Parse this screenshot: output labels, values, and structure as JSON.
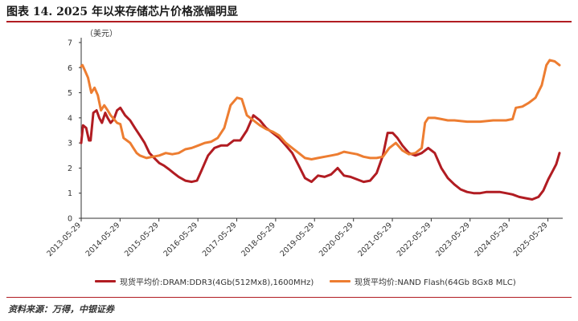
{
  "header": {
    "title": "图表 14. 2025 年以来存储芯片价格涨幅明显"
  },
  "footer": {
    "source": "资料来源：万得，中银证券"
  },
  "colors": {
    "accent_rule": "#b11c22",
    "dram_series": "#b11c22",
    "nand_series": "#ed7d31",
    "axis": "#333333"
  },
  "chart_data": {
    "type": "line",
    "title": "",
    "xlabel": "",
    "ylabel": "（美元）",
    "ylim": [
      0,
      7
    ],
    "yticks": [
      0,
      1,
      2,
      3,
      4,
      5,
      6,
      7
    ],
    "xlim": [
      "2013-05-29",
      "2025-10-15"
    ],
    "xticks": [
      "2013-05-29",
      "2014-05-29",
      "2015-05-29",
      "2016-05-29",
      "2017-05-29",
      "2018-05-29",
      "2019-05-29",
      "2020-05-29",
      "2021-05-29",
      "2022-05-29",
      "2023-05-29",
      "2024-05-29",
      "2025-05-29"
    ],
    "grid": false,
    "legend_position": "bottom",
    "series": [
      {
        "name": "现货平均价:DRAM:DDR3(4Gb(512Mx8),1600MHz)",
        "color": "#b11c22",
        "points": [
          [
            "2013-05-29",
            3.0
          ],
          [
            "2013-06-15",
            3.7
          ],
          [
            "2013-07-15",
            3.6
          ],
          [
            "2013-08-10",
            3.1
          ],
          [
            "2013-08-25",
            3.1
          ],
          [
            "2013-09-20",
            4.2
          ],
          [
            "2013-10-20",
            4.3
          ],
          [
            "2013-11-15",
            4.0
          ],
          [
            "2013-12-10",
            3.8
          ],
          [
            "2014-01-10",
            4.2
          ],
          [
            "2014-02-01",
            4.0
          ],
          [
            "2014-03-01",
            3.8
          ],
          [
            "2014-04-01",
            3.95
          ],
          [
            "2014-05-01",
            4.3
          ],
          [
            "2014-06-01",
            4.4
          ],
          [
            "2014-07-15",
            4.1
          ],
          [
            "2014-09-01",
            3.9
          ],
          [
            "2014-10-15",
            3.6
          ],
          [
            "2014-12-01",
            3.3
          ],
          [
            "2015-01-15",
            3.0
          ],
          [
            "2015-03-01",
            2.6
          ],
          [
            "2015-04-15",
            2.4
          ],
          [
            "2015-06-01",
            2.2
          ],
          [
            "2015-07-15",
            2.1
          ],
          [
            "2015-09-01",
            1.95
          ],
          [
            "2015-10-15",
            1.8
          ],
          [
            "2015-12-01",
            1.65
          ],
          [
            "2016-02-01",
            1.5
          ],
          [
            "2016-04-01",
            1.45
          ],
          [
            "2016-05-20",
            1.5
          ],
          [
            "2016-07-01",
            1.9
          ],
          [
            "2016-09-01",
            2.5
          ],
          [
            "2016-11-01",
            2.8
          ],
          [
            "2017-01-01",
            2.9
          ],
          [
            "2017-03-01",
            2.9
          ],
          [
            "2017-05-01",
            3.1
          ],
          [
            "2017-07-01",
            3.1
          ],
          [
            "2017-09-01",
            3.5
          ],
          [
            "2017-11-01",
            4.1
          ],
          [
            "2018-01-01",
            3.9
          ],
          [
            "2018-03-01",
            3.6
          ],
          [
            "2018-05-01",
            3.4
          ],
          [
            "2018-07-01",
            3.2
          ],
          [
            "2018-09-01",
            2.9
          ],
          [
            "2018-11-01",
            2.6
          ],
          [
            "2019-01-01",
            2.1
          ],
          [
            "2019-03-01",
            1.6
          ],
          [
            "2019-05-01",
            1.45
          ],
          [
            "2019-07-01",
            1.7
          ],
          [
            "2019-09-01",
            1.65
          ],
          [
            "2019-11-01",
            1.75
          ],
          [
            "2020-01-01",
            2.0
          ],
          [
            "2020-03-01",
            1.7
          ],
          [
            "2020-05-01",
            1.65
          ],
          [
            "2020-07-01",
            1.55
          ],
          [
            "2020-09-01",
            1.45
          ],
          [
            "2020-11-01",
            1.5
          ],
          [
            "2021-01-01",
            1.8
          ],
          [
            "2021-03-01",
            2.5
          ],
          [
            "2021-04-15",
            3.4
          ],
          [
            "2021-06-01",
            3.4
          ],
          [
            "2021-07-15",
            3.2
          ],
          [
            "2021-09-01",
            2.9
          ],
          [
            "2021-11-01",
            2.6
          ],
          [
            "2022-01-01",
            2.5
          ],
          [
            "2022-03-01",
            2.6
          ],
          [
            "2022-05-01",
            2.8
          ],
          [
            "2022-07-01",
            2.6
          ],
          [
            "2022-09-01",
            2.0
          ],
          [
            "2022-11-01",
            1.6
          ],
          [
            "2023-01-01",
            1.35
          ],
          [
            "2023-03-01",
            1.15
          ],
          [
            "2023-05-01",
            1.05
          ],
          [
            "2023-07-01",
            1.0
          ],
          [
            "2023-09-01",
            1.0
          ],
          [
            "2023-11-01",
            1.05
          ],
          [
            "2024-01-01",
            1.05
          ],
          [
            "2024-03-01",
            1.05
          ],
          [
            "2024-05-01",
            1.0
          ],
          [
            "2024-07-01",
            0.95
          ],
          [
            "2024-09-01",
            0.85
          ],
          [
            "2024-11-01",
            0.8
          ],
          [
            "2025-01-01",
            0.75
          ],
          [
            "2025-03-01",
            0.85
          ],
          [
            "2025-04-15",
            1.1
          ],
          [
            "2025-06-01",
            1.55
          ],
          [
            "2025-07-15",
            1.9
          ],
          [
            "2025-08-15",
            2.15
          ],
          [
            "2025-09-01",
            2.4
          ],
          [
            "2025-09-15",
            2.6
          ]
        ]
      },
      {
        "name": "现货平均价:NAND Flash(64Gb 8Gx8 MLC)",
        "color": "#ed7d31",
        "points": [
          [
            "2013-05-29",
            6.05
          ],
          [
            "2013-06-10",
            6.1
          ],
          [
            "2013-07-01",
            5.9
          ],
          [
            "2013-08-01",
            5.6
          ],
          [
            "2013-09-01",
            5.0
          ],
          [
            "2013-10-01",
            5.2
          ],
          [
            "2013-11-01",
            4.9
          ],
          [
            "2013-12-01",
            4.3
          ],
          [
            "2014-01-01",
            4.5
          ],
          [
            "2014-02-01",
            4.3
          ],
          [
            "2014-03-01",
            4.1
          ],
          [
            "2014-04-01",
            3.95
          ],
          [
            "2014-05-01",
            3.8
          ],
          [
            "2014-06-01",
            3.75
          ],
          [
            "2014-07-01",
            3.2
          ],
          [
            "2014-08-01",
            3.1
          ],
          [
            "2014-09-01",
            3.0
          ],
          [
            "2014-10-01",
            2.8
          ],
          [
            "2014-11-01",
            2.6
          ],
          [
            "2014-12-01",
            2.5
          ],
          [
            "2015-02-01",
            2.4
          ],
          [
            "2015-04-01",
            2.45
          ],
          [
            "2015-06-01",
            2.5
          ],
          [
            "2015-08-01",
            2.6
          ],
          [
            "2015-10-01",
            2.55
          ],
          [
            "2015-12-01",
            2.6
          ],
          [
            "2016-02-01",
            2.75
          ],
          [
            "2016-04-01",
            2.8
          ],
          [
            "2016-06-01",
            2.9
          ],
          [
            "2016-08-01",
            3.0
          ],
          [
            "2016-10-01",
            3.05
          ],
          [
            "2016-12-01",
            3.2
          ],
          [
            "2017-02-01",
            3.6
          ],
          [
            "2017-04-01",
            4.5
          ],
          [
            "2017-06-01",
            4.8
          ],
          [
            "2017-07-15",
            4.75
          ],
          [
            "2017-09-01",
            4.1
          ],
          [
            "2017-11-01",
            3.9
          ],
          [
            "2018-01-01",
            3.7
          ],
          [
            "2018-03-01",
            3.55
          ],
          [
            "2018-05-01",
            3.45
          ],
          [
            "2018-07-01",
            3.3
          ],
          [
            "2018-09-01",
            3.0
          ],
          [
            "2018-11-01",
            2.8
          ],
          [
            "2019-01-01",
            2.6
          ],
          [
            "2019-03-01",
            2.4
          ],
          [
            "2019-05-01",
            2.35
          ],
          [
            "2019-07-01",
            2.4
          ],
          [
            "2019-09-01",
            2.45
          ],
          [
            "2019-11-01",
            2.5
          ],
          [
            "2020-01-01",
            2.55
          ],
          [
            "2020-03-01",
            2.65
          ],
          [
            "2020-05-01",
            2.6
          ],
          [
            "2020-07-01",
            2.55
          ],
          [
            "2020-09-01",
            2.45
          ],
          [
            "2020-11-01",
            2.4
          ],
          [
            "2021-01-01",
            2.4
          ],
          [
            "2021-03-01",
            2.45
          ],
          [
            "2021-05-01",
            2.8
          ],
          [
            "2021-07-01",
            3.0
          ],
          [
            "2021-09-01",
            2.7
          ],
          [
            "2021-11-01",
            2.55
          ],
          [
            "2022-01-01",
            2.6
          ],
          [
            "2022-03-01",
            2.8
          ],
          [
            "2022-04-01",
            3.8
          ],
          [
            "2022-05-01",
            4.0
          ],
          [
            "2022-07-01",
            4.0
          ],
          [
            "2022-09-01",
            3.95
          ],
          [
            "2022-11-01",
            3.9
          ],
          [
            "2023-01-01",
            3.9
          ],
          [
            "2023-05-01",
            3.85
          ],
          [
            "2023-09-01",
            3.85
          ],
          [
            "2024-01-01",
            3.9
          ],
          [
            "2024-05-01",
            3.9
          ],
          [
            "2024-07-01",
            3.95
          ],
          [
            "2024-08-01",
            4.4
          ],
          [
            "2024-10-01",
            4.45
          ],
          [
            "2024-12-01",
            4.6
          ],
          [
            "2025-02-01",
            4.8
          ],
          [
            "2025-04-01",
            5.3
          ],
          [
            "2025-05-15",
            6.1
          ],
          [
            "2025-06-15",
            6.3
          ],
          [
            "2025-08-01",
            6.25
          ],
          [
            "2025-09-15",
            6.1
          ]
        ]
      }
    ]
  }
}
